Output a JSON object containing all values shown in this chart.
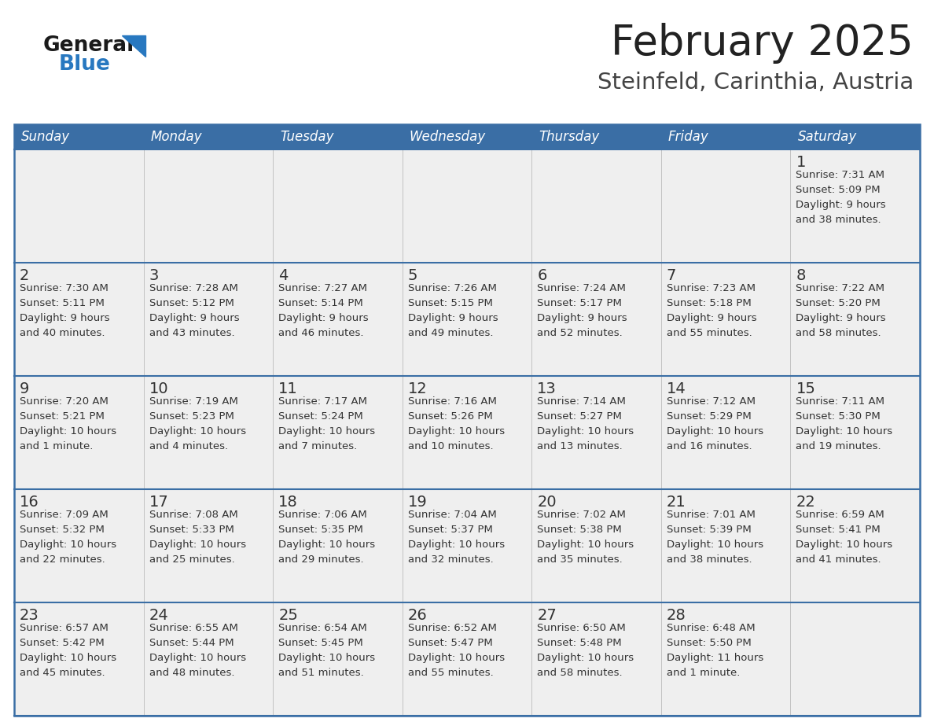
{
  "title": "February 2025",
  "subtitle": "Steinfeld, Carinthia, Austria",
  "days_of_week": [
    "Sunday",
    "Monday",
    "Tuesday",
    "Wednesday",
    "Thursday",
    "Friday",
    "Saturday"
  ],
  "header_bg": "#3a6ea5",
  "header_text": "#ffffff",
  "row_bg_light": "#efefef",
  "row_bg_white": "#ffffff",
  "cell_text": "#333333",
  "border_color": "#3a6ea5",
  "title_color": "#222222",
  "subtitle_color": "#444444",
  "logo_general_color": "#1a1a1a",
  "logo_blue_color": "#2878c0",
  "calendar_data": [
    [
      {
        "day": null,
        "info": ""
      },
      {
        "day": null,
        "info": ""
      },
      {
        "day": null,
        "info": ""
      },
      {
        "day": null,
        "info": ""
      },
      {
        "day": null,
        "info": ""
      },
      {
        "day": null,
        "info": ""
      },
      {
        "day": 1,
        "info": "Sunrise: 7:31 AM\nSunset: 5:09 PM\nDaylight: 9 hours\nand 38 minutes."
      }
    ],
    [
      {
        "day": 2,
        "info": "Sunrise: 7:30 AM\nSunset: 5:11 PM\nDaylight: 9 hours\nand 40 minutes."
      },
      {
        "day": 3,
        "info": "Sunrise: 7:28 AM\nSunset: 5:12 PM\nDaylight: 9 hours\nand 43 minutes."
      },
      {
        "day": 4,
        "info": "Sunrise: 7:27 AM\nSunset: 5:14 PM\nDaylight: 9 hours\nand 46 minutes."
      },
      {
        "day": 5,
        "info": "Sunrise: 7:26 AM\nSunset: 5:15 PM\nDaylight: 9 hours\nand 49 minutes."
      },
      {
        "day": 6,
        "info": "Sunrise: 7:24 AM\nSunset: 5:17 PM\nDaylight: 9 hours\nand 52 minutes."
      },
      {
        "day": 7,
        "info": "Sunrise: 7:23 AM\nSunset: 5:18 PM\nDaylight: 9 hours\nand 55 minutes."
      },
      {
        "day": 8,
        "info": "Sunrise: 7:22 AM\nSunset: 5:20 PM\nDaylight: 9 hours\nand 58 minutes."
      }
    ],
    [
      {
        "day": 9,
        "info": "Sunrise: 7:20 AM\nSunset: 5:21 PM\nDaylight: 10 hours\nand 1 minute."
      },
      {
        "day": 10,
        "info": "Sunrise: 7:19 AM\nSunset: 5:23 PM\nDaylight: 10 hours\nand 4 minutes."
      },
      {
        "day": 11,
        "info": "Sunrise: 7:17 AM\nSunset: 5:24 PM\nDaylight: 10 hours\nand 7 minutes."
      },
      {
        "day": 12,
        "info": "Sunrise: 7:16 AM\nSunset: 5:26 PM\nDaylight: 10 hours\nand 10 minutes."
      },
      {
        "day": 13,
        "info": "Sunrise: 7:14 AM\nSunset: 5:27 PM\nDaylight: 10 hours\nand 13 minutes."
      },
      {
        "day": 14,
        "info": "Sunrise: 7:12 AM\nSunset: 5:29 PM\nDaylight: 10 hours\nand 16 minutes."
      },
      {
        "day": 15,
        "info": "Sunrise: 7:11 AM\nSunset: 5:30 PM\nDaylight: 10 hours\nand 19 minutes."
      }
    ],
    [
      {
        "day": 16,
        "info": "Sunrise: 7:09 AM\nSunset: 5:32 PM\nDaylight: 10 hours\nand 22 minutes."
      },
      {
        "day": 17,
        "info": "Sunrise: 7:08 AM\nSunset: 5:33 PM\nDaylight: 10 hours\nand 25 minutes."
      },
      {
        "day": 18,
        "info": "Sunrise: 7:06 AM\nSunset: 5:35 PM\nDaylight: 10 hours\nand 29 minutes."
      },
      {
        "day": 19,
        "info": "Sunrise: 7:04 AM\nSunset: 5:37 PM\nDaylight: 10 hours\nand 32 minutes."
      },
      {
        "day": 20,
        "info": "Sunrise: 7:02 AM\nSunset: 5:38 PM\nDaylight: 10 hours\nand 35 minutes."
      },
      {
        "day": 21,
        "info": "Sunrise: 7:01 AM\nSunset: 5:39 PM\nDaylight: 10 hours\nand 38 minutes."
      },
      {
        "day": 22,
        "info": "Sunrise: 6:59 AM\nSunset: 5:41 PM\nDaylight: 10 hours\nand 41 minutes."
      }
    ],
    [
      {
        "day": 23,
        "info": "Sunrise: 6:57 AM\nSunset: 5:42 PM\nDaylight: 10 hours\nand 45 minutes."
      },
      {
        "day": 24,
        "info": "Sunrise: 6:55 AM\nSunset: 5:44 PM\nDaylight: 10 hours\nand 48 minutes."
      },
      {
        "day": 25,
        "info": "Sunrise: 6:54 AM\nSunset: 5:45 PM\nDaylight: 10 hours\nand 51 minutes."
      },
      {
        "day": 26,
        "info": "Sunrise: 6:52 AM\nSunset: 5:47 PM\nDaylight: 10 hours\nand 55 minutes."
      },
      {
        "day": 27,
        "info": "Sunrise: 6:50 AM\nSunset: 5:48 PM\nDaylight: 10 hours\nand 58 minutes."
      },
      {
        "day": 28,
        "info": "Sunrise: 6:48 AM\nSunset: 5:50 PM\nDaylight: 11 hours\nand 1 minute."
      },
      {
        "day": null,
        "info": ""
      }
    ]
  ]
}
